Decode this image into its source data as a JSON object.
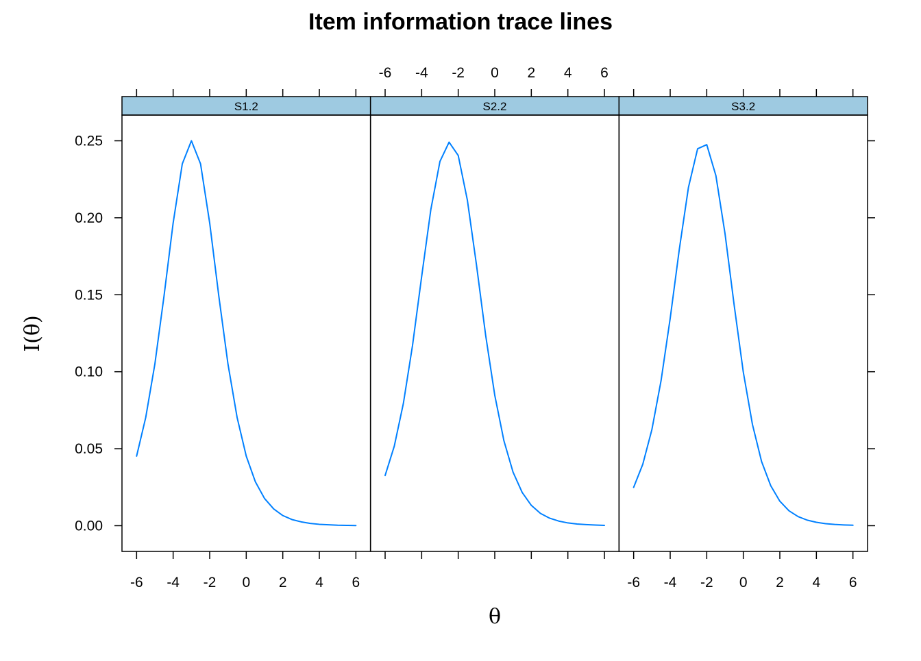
{
  "chart_data": {
    "type": "line",
    "title": "Item information trace lines",
    "xlabel": "θ",
    "ylabel": "I(θ)",
    "xlim": [
      -6.8,
      6.8
    ],
    "ylim": [
      -0.0167,
      0.2667
    ],
    "x_ticks": [
      -6,
      -4,
      -2,
      0,
      2,
      4,
      6
    ],
    "x_tick_labels": [
      "-6",
      "-4",
      "-2",
      "0",
      "2",
      "4",
      "6"
    ],
    "y_ticks": [
      0.0,
      0.05,
      0.1,
      0.15,
      0.2,
      0.25
    ],
    "y_tick_labels": [
      "0.00",
      "0.05",
      "0.10",
      "0.15",
      "0.20",
      "0.25"
    ],
    "line_color": "#0080ff",
    "strip_color": "#9ecae1",
    "panels": [
      {
        "name": "S1.2",
        "x": [
          -6,
          -5.5,
          -5,
          -4.5,
          -4,
          -3.5,
          -3,
          -2.5,
          -2,
          -1.5,
          -1,
          -0.5,
          0,
          0.5,
          1,
          1.5,
          2,
          2.5,
          3,
          3.5,
          4,
          4.5,
          5,
          5.5,
          6
        ],
        "y": [
          0.0452,
          0.0703,
          0.105,
          0.1491,
          0.1966,
          0.235,
          0.25,
          0.235,
          0.1966,
          0.1491,
          0.105,
          0.0703,
          0.0452,
          0.0285,
          0.0177,
          0.0109,
          0.0066,
          0.004,
          0.0025,
          0.0015,
          0.0009,
          0.0006,
          0.0003,
          0.0002,
          0.0001
        ]
      },
      {
        "name": "S2.2",
        "x": [
          -6,
          -5.5,
          -5,
          -4.5,
          -4,
          -3.5,
          -3,
          -2.5,
          -2,
          -1.5,
          -1,
          -0.5,
          0,
          0.5,
          1,
          1.5,
          2,
          2.5,
          3,
          3.5,
          4,
          4.5,
          5,
          5.5,
          6
        ],
        "y": [
          0.0326,
          0.0516,
          0.0795,
          0.1171,
          0.1619,
          0.2052,
          0.2366,
          0.2491,
          0.2405,
          0.2115,
          0.1693,
          0.1238,
          0.0847,
          0.0552,
          0.0348,
          0.0216,
          0.0132,
          0.008,
          0.0049,
          0.003,
          0.0018,
          0.0011,
          0.0007,
          0.0004,
          0.0002
        ]
      },
      {
        "name": "S3.2",
        "x": [
          -6,
          -5.5,
          -5,
          -4.5,
          -4,
          -3.5,
          -3,
          -2.5,
          -2,
          -1.5,
          -1,
          -0.5,
          0,
          0.5,
          1,
          1.5,
          2,
          2.5,
          3,
          3.5,
          4,
          4.5,
          5,
          5.5,
          6
        ],
        "y": [
          0.0249,
          0.0399,
          0.0625,
          0.0942,
          0.1347,
          0.1796,
          0.2198,
          0.2448,
          0.2475,
          0.2274,
          0.1897,
          0.1433,
          0.0998,
          0.0658,
          0.0417,
          0.026,
          0.0159,
          0.0097,
          0.0059,
          0.0036,
          0.0022,
          0.0013,
          0.0008,
          0.0005,
          0.0003
        ]
      }
    ]
  }
}
